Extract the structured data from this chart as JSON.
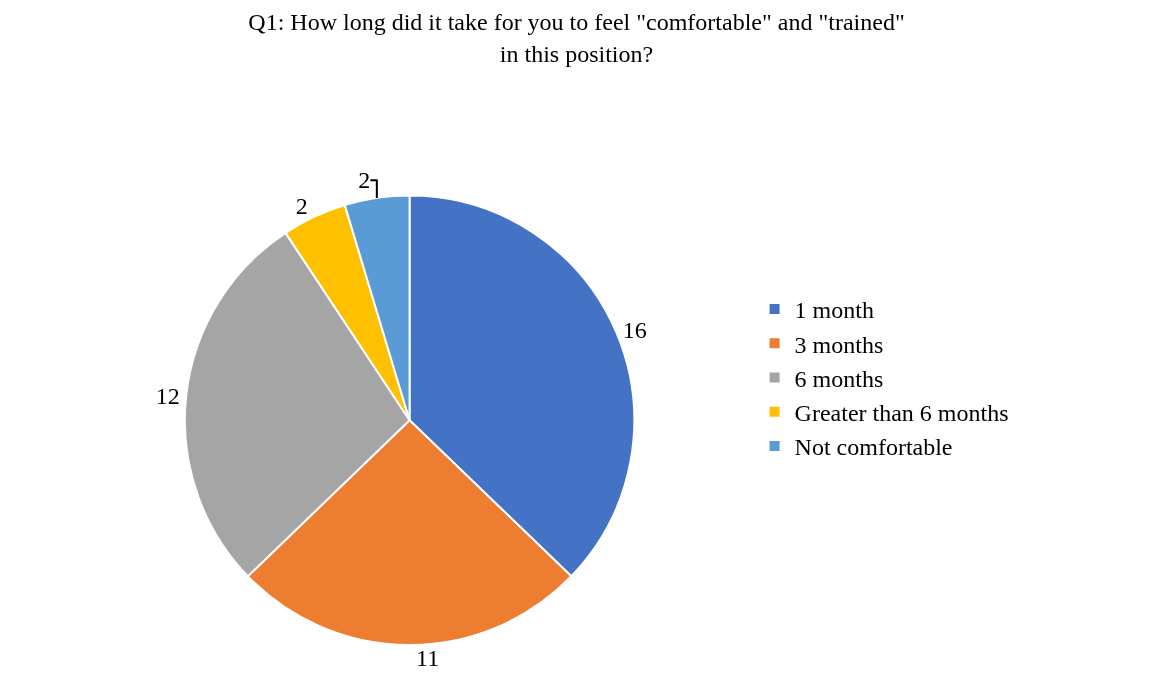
{
  "chart_data": {
    "type": "pie",
    "title": "Q1: How long did it take for you to feel \"comfortable\" and \"trained\"\nin this position?",
    "categories": [
      "1 month",
      "3 months",
      "6 months",
      "Greater than 6 months",
      "Not comfortable"
    ],
    "values": [
      16,
      11,
      12,
      2,
      2
    ],
    "colors": [
      "#4472c4",
      "#ed7d31",
      "#a5a5a5",
      "#ffc000",
      "#5b9bd5"
    ],
    "data_labels": true,
    "legend": "right"
  }
}
